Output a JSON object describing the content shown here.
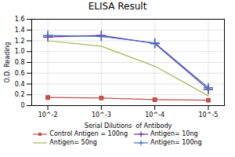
{
  "chart_data": {
    "type": "line",
    "title": "ELISA Result",
    "xlabel": "Serial Dilutions  of Antibody",
    "ylabel": "O.D. Reading",
    "x": [
      0.01,
      0.001,
      0.0001,
      1e-05
    ],
    "series": [
      {
        "name": "Control Antigen = 100ng",
        "color": "#c0504d",
        "marker": "square",
        "line_style": "solid",
        "values": [
          0.15,
          0.14,
          0.11,
          0.1
        ]
      },
      {
        "name": "Antigen= 10ng",
        "color": "#7030a0",
        "marker": "plus",
        "line_style": "solid",
        "values": [
          1.27,
          1.3,
          1.15,
          0.3
        ]
      },
      {
        "name": "Antigen= 50ng",
        "color": "#9bbb59",
        "marker": "none",
        "line_style": "solid",
        "values": [
          1.2,
          1.1,
          0.73,
          0.18
        ]
      },
      {
        "name": "Antigen= 100ng",
        "color": "#4472c4",
        "marker": "plus",
        "line_style": "solid",
        "values": [
          1.3,
          1.28,
          1.16,
          0.33
        ]
      }
    ],
    "log": "x",
    "xlim": [
      0.02,
      5e-06
    ],
    "xticks": [
      {
        "value": 0.01,
        "label": "10^-2"
      },
      {
        "value": 0.001,
        "label": "10^-3"
      },
      {
        "value": 0.0001,
        "label": "10^-4"
      },
      {
        "value": 1e-05,
        "label": "10^-5"
      }
    ],
    "ylim": [
      0,
      1.6
    ],
    "yticks": [
      0,
      0.2,
      0.4,
      0.6,
      {
        "value": 0.8,
        "label": "0.8"
      },
      {
        "value": 1.0,
        "label": "1.0"
      },
      1.2,
      1.4,
      1.6
    ],
    "grid": true,
    "legend": "bottom"
  }
}
